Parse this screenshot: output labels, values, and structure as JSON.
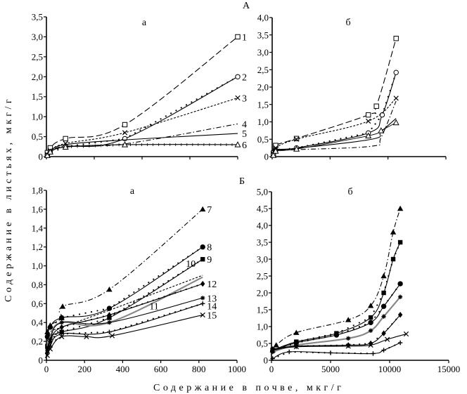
{
  "figure": {
    "section_labels": [
      "А",
      "Б"
    ],
    "ylabel": "Содержание в листьях, мкг/г",
    "xlabel": "Содержание в почве, мкг/г"
  },
  "chart_data": [
    {
      "id": "A-a",
      "type": "line",
      "section": "А",
      "title": "а",
      "xlabel": "",
      "ylabel": "Содержание в листьях, мкг/г",
      "xlim": [
        0,
        1000
      ],
      "ylim": [
        0,
        3.5
      ],
      "xticks": [
        0,
        250,
        500,
        750,
        1000
      ],
      "xtick_labels": [
        "",
        "",
        "",
        "",
        ""
      ],
      "yticks": [
        0,
        0.5,
        1.0,
        1.5,
        2.0,
        2.5,
        3.0,
        3.5
      ],
      "ytick_labels": [
        "0",
        "0,5",
        "1,0",
        "1,5",
        "2,0",
        "2,5",
        "3,0",
        "3,5"
      ],
      "grid": false,
      "series": [
        {
          "name": "1",
          "marker": "square-open",
          "dash": "long-dash",
          "color": "#000000",
          "x": [
            5,
            20,
            100,
            410,
            1000
          ],
          "y": [
            0.1,
            0.22,
            0.45,
            0.8,
            3.0
          ]
        },
        {
          "name": "2",
          "marker": "circle-open",
          "dash": "solid-dotted",
          "color": "#000000",
          "x": [
            5,
            20,
            100,
            410,
            1000
          ],
          "y": [
            0.03,
            0.12,
            0.25,
            0.45,
            2.0
          ]
        },
        {
          "name": "3",
          "marker": "x",
          "dash": "short-dash",
          "color": "#000000",
          "x": [
            5,
            20,
            100,
            410,
            1000
          ],
          "y": [
            0.05,
            0.15,
            0.33,
            0.6,
            1.47
          ]
        },
        {
          "name": "4",
          "marker": "none",
          "dash": "dash-dot",
          "color": "#000000",
          "x": [
            5,
            20,
            100,
            410,
            1000
          ],
          "y": [
            0.04,
            0.12,
            0.26,
            0.32,
            0.82
          ]
        },
        {
          "name": "5",
          "marker": "none",
          "dash": "solid",
          "color": "#000000",
          "x": [
            5,
            20,
            100,
            410,
            1000
          ],
          "y": [
            0.05,
            0.14,
            0.3,
            0.42,
            0.58
          ]
        },
        {
          "name": "6",
          "marker": "triangle-open",
          "dash": "plus-line",
          "color": "#000000",
          "x": [
            5,
            20,
            100,
            410,
            1000
          ],
          "y": [
            0.03,
            0.12,
            0.24,
            0.3,
            0.3
          ]
        }
      ]
    },
    {
      "id": "A-b",
      "type": "line",
      "section": "А",
      "title": "б",
      "xlabel": "",
      "ylabel": "",
      "xlim": [
        0,
        15000
      ],
      "ylim": [
        0,
        4.0
      ],
      "xticks": [
        0,
        5000,
        10000,
        15000
      ],
      "xtick_labels": [
        "",
        "",
        "",
        ""
      ],
      "yticks": [
        0,
        0.5,
        1.0,
        1.5,
        2.0,
        2.5,
        3.0,
        3.5,
        4.0
      ],
      "ytick_labels": [
        "0",
        "0,5",
        "1,0",
        "1,5",
        "2,0",
        "2,5",
        "3,0",
        "3,5",
        "4,0"
      ],
      "grid": false,
      "series": [
        {
          "name": "1",
          "marker": "square-open",
          "dash": "long-dash",
          "color": "#000000",
          "x": [
            100,
            300,
            2100,
            8300,
            9000,
            10700
          ],
          "y": [
            0.1,
            0.32,
            0.52,
            1.2,
            1.45,
            3.4
          ]
        },
        {
          "name": "2",
          "marker": "circle-open",
          "dash": "solid-dotted",
          "color": "#000000",
          "x": [
            100,
            300,
            2100,
            8300,
            9500,
            10700
          ],
          "y": [
            0.05,
            0.18,
            0.25,
            0.68,
            1.2,
            2.42
          ]
        },
        {
          "name": "3",
          "marker": "x",
          "dash": "short-dash",
          "color": "#000000",
          "x": [
            100,
            300,
            2100,
            8300,
            10700
          ],
          "y": [
            0.08,
            0.25,
            0.5,
            1.02,
            1.68
          ]
        },
        {
          "name": "4",
          "marker": "none",
          "dash": "dash-dot",
          "color": "#000000",
          "x": [
            100,
            300,
            2100,
            8600,
            9400,
            10700
          ],
          "y": [
            0.05,
            0.16,
            0.2,
            0.3,
            0.55,
            1.6
          ]
        },
        {
          "name": "5",
          "marker": "none",
          "dash": "solid",
          "color": "#000000",
          "x": [
            100,
            300,
            2100,
            8600,
            9400,
            10700
          ],
          "y": [
            0.06,
            0.2,
            0.24,
            0.5,
            0.72,
            1.1
          ]
        },
        {
          "name": "6",
          "marker": "triangle-open",
          "dash": "solid-thin",
          "color": "#000000",
          "x": [
            100,
            300,
            2100,
            8300,
            9400,
            10700
          ],
          "y": [
            0.04,
            0.16,
            0.22,
            0.6,
            0.75,
            0.98
          ]
        }
      ]
    },
    {
      "id": "B-a",
      "type": "line",
      "section": "Б",
      "title": "а",
      "xlabel": "",
      "ylabel": "",
      "xlim": [
        0,
        1000
      ],
      "ylim": [
        0,
        1.8
      ],
      "xticks": [
        0,
        200,
        400,
        600,
        800,
        1000
      ],
      "xtick_labels": [
        "0",
        "200",
        "400",
        "600",
        "800",
        "1000"
      ],
      "yticks": [
        0,
        0.2,
        0.4,
        0.6,
        0.8,
        1.0,
        1.2,
        1.4,
        1.6,
        1.8
      ],
      "ytick_labels": [
        "0",
        "0,2",
        "0,4",
        "0,6",
        "0,8",
        "1,0",
        "1,2",
        "1,4",
        "1,6",
        "1,8"
      ],
      "grid": false,
      "series": [
        {
          "name": "7",
          "marker": "triangle-filled",
          "dash": "dash-dot",
          "color": "#000000",
          "x": [
            5,
            20,
            80,
            85,
            330,
            820
          ],
          "y": [
            0.3,
            0.37,
            0.45,
            0.57,
            0.75,
            1.6
          ]
        },
        {
          "name": "8",
          "marker": "circle-filled",
          "dash": "solid-dotted",
          "color": "#000000",
          "x": [
            5,
            20,
            80,
            330,
            820
          ],
          "y": [
            0.25,
            0.35,
            0.45,
            0.55,
            1.2
          ]
        },
        {
          "name": "9",
          "marker": "square-filled",
          "dash": "solid-dotted",
          "color": "#000000",
          "x": [
            5,
            20,
            80,
            330,
            820
          ],
          "y": [
            0.15,
            0.25,
            0.3,
            0.45,
            1.07
          ]
        },
        {
          "name": "10",
          "marker": "none",
          "dash": "short-dash",
          "color": "#000000",
          "x": [
            5,
            20,
            80,
            330,
            820
          ],
          "y": [
            0.2,
            0.3,
            0.35,
            0.53,
            0.9
          ]
        },
        {
          "name": "11",
          "marker": "none",
          "dash": "solid",
          "color": "#888888",
          "x": [
            5,
            20,
            80,
            330,
            820
          ],
          "y": [
            0.15,
            0.25,
            0.4,
            0.4,
            0.88
          ]
        },
        {
          "name": "12",
          "marker": "diamond-filled",
          "dash": "solid-dotted",
          "color": "#000000",
          "x": [
            5,
            20,
            80,
            330,
            820
          ],
          "y": [
            0.1,
            0.2,
            0.35,
            0.48,
            0.81
          ]
        },
        {
          "name": "13",
          "marker": "star",
          "dash": "solid",
          "color": "#000000",
          "x": [
            5,
            20,
            80,
            330,
            820
          ],
          "y": [
            0.12,
            0.22,
            0.4,
            0.4,
            0.66
          ]
        },
        {
          "name": "14",
          "marker": "plus",
          "dash": "solid-dotted",
          "color": "#000000",
          "x": [
            5,
            20,
            80,
            330,
            820
          ],
          "y": [
            0.08,
            0.15,
            0.28,
            0.3,
            0.6
          ]
        },
        {
          "name": "15",
          "marker": "x",
          "dash": "solid",
          "color": "#000000",
          "x": [
            5,
            20,
            80,
            210,
            345,
            820
          ],
          "y": [
            0.05,
            0.12,
            0.25,
            0.25,
            0.26,
            0.48
          ]
        }
      ]
    },
    {
      "id": "B-b",
      "type": "line",
      "section": "Б",
      "title": "б",
      "xlabel": "Содержание в почве, мкг/г",
      "ylabel": "",
      "xlim": [
        0,
        15000
      ],
      "ylim": [
        0,
        5.0
      ],
      "xticks": [
        0,
        5000,
        10000,
        15000
      ],
      "xtick_labels": [
        "0",
        "5000",
        "10000",
        "15000"
      ],
      "yticks": [
        0,
        0.5,
        1.0,
        1.5,
        2.0,
        2.5,
        3.0,
        3.5,
        4.0,
        4.5,
        5.0
      ],
      "ytick_labels": [
        "0",
        "0,5",
        "1,0",
        "1,5",
        "2,0",
        "2,5",
        "3,0",
        "3,5",
        "4,0",
        "4,5",
        "5,0"
      ],
      "grid": false,
      "series": [
        {
          "name": "7",
          "marker": "triangle-filled",
          "dash": "dash-dot",
          "color": "#000000",
          "x": [
            100,
            400,
            2100,
            6500,
            8400,
            9500,
            10300,
            10900
          ],
          "y": [
            0.3,
            0.45,
            0.82,
            1.2,
            1.62,
            2.5,
            3.8,
            4.5
          ]
        },
        {
          "name": "8",
          "marker": "square-filled",
          "dash": "solid-dotted",
          "color": "#000000",
          "x": [
            100,
            2100,
            5500,
            8400,
            9500,
            10300,
            10900
          ],
          "y": [
            0.3,
            0.55,
            0.8,
            1.27,
            2.0,
            3.0,
            3.5
          ]
        },
        {
          "name": "9",
          "marker": "circle-filled",
          "dash": "solid-dotted",
          "color": "#000000",
          "x": [
            100,
            2100,
            5500,
            8400,
            9500,
            10900
          ],
          "y": [
            0.28,
            0.52,
            0.75,
            1.12,
            1.6,
            2.27
          ]
        },
        {
          "name": "10",
          "marker": "star",
          "dash": "solid",
          "color": "#888888",
          "x": [
            100,
            2100,
            6500,
            8400,
            9500,
            10900
          ],
          "y": [
            0.25,
            0.45,
            0.65,
            0.88,
            1.3,
            1.88
          ]
        },
        {
          "name": "11",
          "marker": "diamond-filled",
          "dash": "solid-dotted",
          "color": "#000000",
          "x": [
            100,
            2100,
            6500,
            8400,
            9500,
            10900
          ],
          "y": [
            0.33,
            0.42,
            0.45,
            0.5,
            0.8,
            1.35
          ]
        },
        {
          "name": "12",
          "marker": "x",
          "dash": "solid",
          "color": "#000000",
          "x": [
            100,
            2100,
            6500,
            8400,
            9800,
            11400
          ],
          "y": [
            0.3,
            0.4,
            0.42,
            0.45,
            0.62,
            0.78
          ]
        },
        {
          "name": "13",
          "marker": "plus",
          "dash": "solid-dotted",
          "color": "#000000",
          "x": [
            100,
            1500,
            5000,
            8600,
            9500,
            10900
          ],
          "y": [
            0.05,
            0.25,
            0.22,
            0.2,
            0.3,
            0.52
          ]
        }
      ]
    }
  ]
}
